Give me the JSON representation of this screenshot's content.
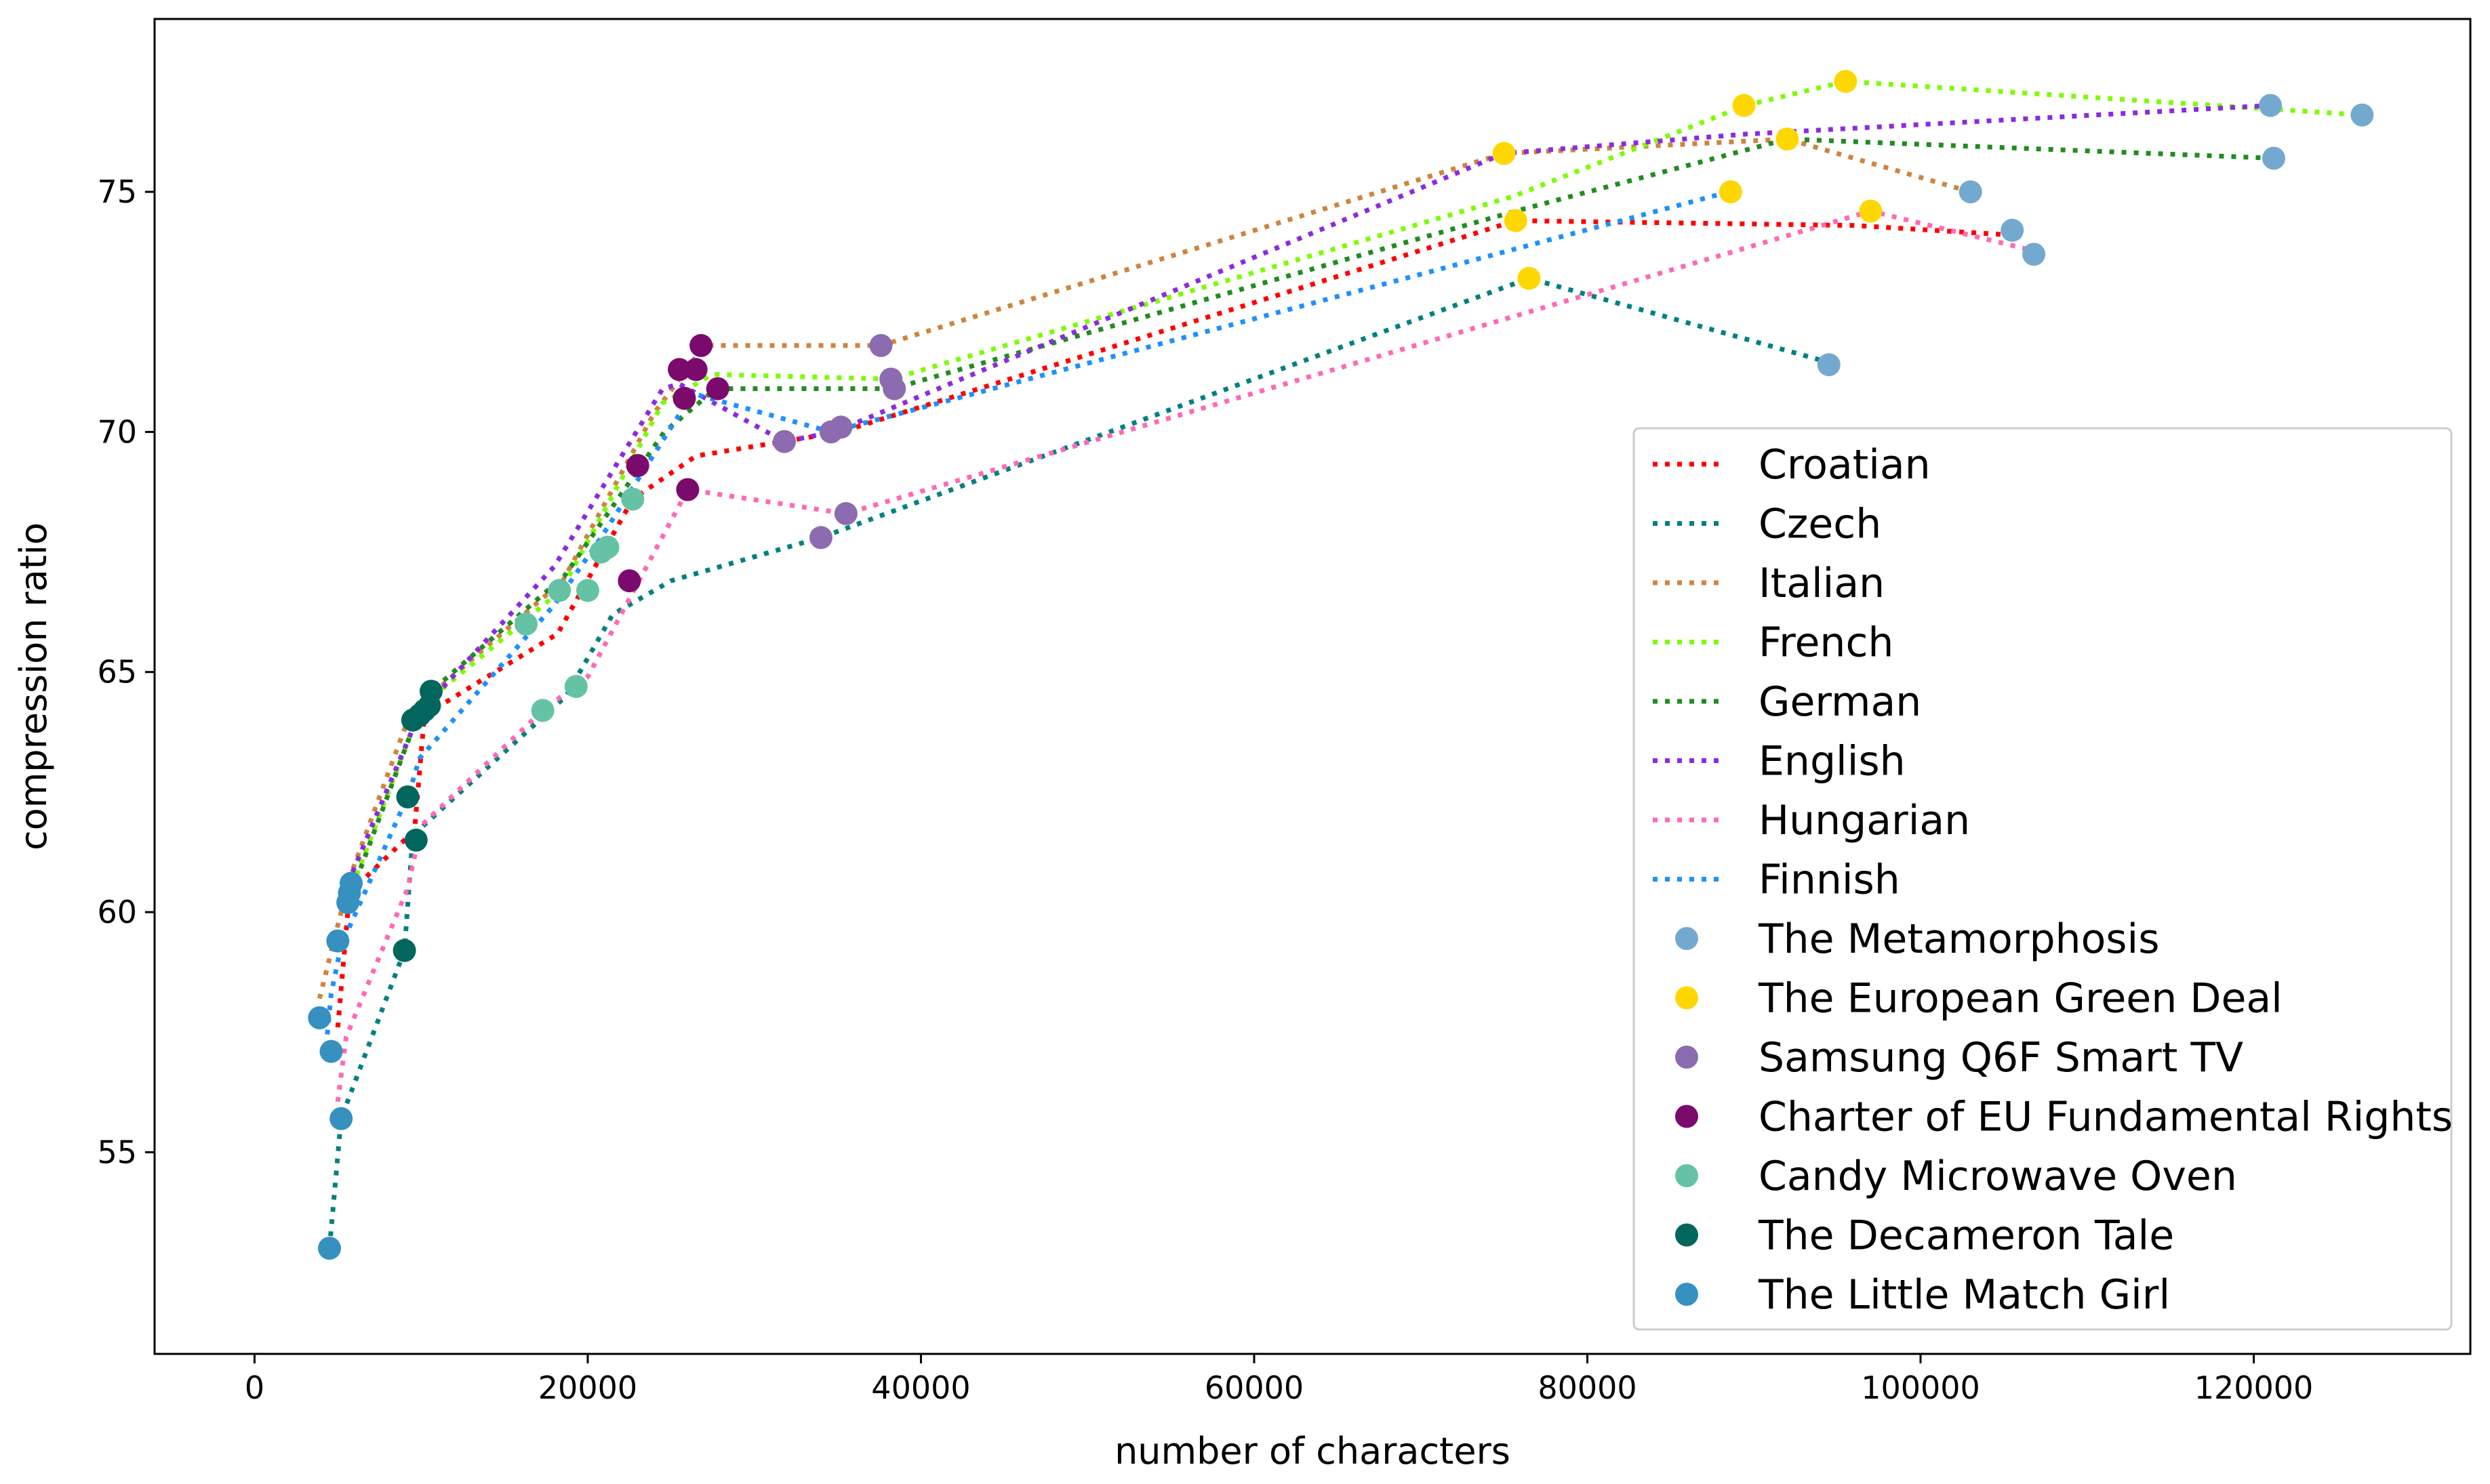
{
  "chart_data": {
    "type": "line",
    "title": "",
    "xlabel": "number of characters",
    "ylabel": "compression ratio",
    "xlim": [
      -6000,
      133000
    ],
    "ylim": [
      50.8,
      78.6
    ],
    "xticks": [
      0,
      20000,
      40000,
      60000,
      80000,
      100000,
      120000
    ],
    "xtick_labels": [
      "0",
      "20000",
      "40000",
      "60000",
      "80000",
      "100000",
      "120000"
    ],
    "yticks": [
      55,
      60,
      65,
      70,
      75
    ],
    "ytick_labels": [
      "55",
      "60",
      "65",
      "70",
      "75"
    ],
    "grid": false,
    "legend_position": "lower-right",
    "series": [
      {
        "name": "Croatian",
        "color": "#ff0000",
        "x": [
          5000,
          5700,
          9600,
          10200,
          18200,
          22700,
          26500,
          35200,
          75700,
          96000,
          105500
        ],
        "y": [
          57.6,
          60.4,
          61.7,
          64.1,
          65.8,
          68.6,
          69.5,
          70.0,
          74.4,
          74.3,
          74.1
        ]
      },
      {
        "name": "Czech",
        "color": "#008080",
        "x": [
          4500,
          5200,
          9000,
          9500,
          18700,
          21500,
          25000,
          34000,
          76500,
          95000
        ],
        "y": [
          53.0,
          55.7,
          59.2,
          61.6,
          64.5,
          66.2,
          66.9,
          67.8,
          73.2,
          71.4
        ]
      },
      {
        "name": "Italian",
        "color": "#cd853f",
        "x": [
          3900,
          5700,
          9200,
          10500,
          18500,
          24000,
          27000,
          37600,
          75000,
          92000,
          103000
        ],
        "y": [
          58.2,
          60.7,
          64.0,
          64.5,
          66.9,
          70.4,
          71.8,
          71.8,
          75.8,
          76.1,
          75.0
        ]
      },
      {
        "name": "French",
        "color": "#7cfc00",
        "x": [
          5600,
          9700,
          10400,
          18400,
          24500,
          27500,
          38200,
          75500,
          89500,
          95500,
          126500
        ],
        "y": [
          60.3,
          64.0,
          64.4,
          66.7,
          70.6,
          71.2,
          71.1,
          74.9,
          76.8,
          77.3,
          76.6
        ]
      },
      {
        "name": "German",
        "color": "#228b22",
        "x": [
          5600,
          9900,
          10600,
          18600,
          24600,
          27700,
          38300,
          75700,
          92000,
          121200
        ],
        "y": [
          60.2,
          64.2,
          64.6,
          67.0,
          70.0,
          70.9,
          70.9,
          74.6,
          76.1,
          75.7
        ]
      },
      {
        "name": "English",
        "color": "#8a2be2",
        "x": [
          5600,
          9600,
          10300,
          18000,
          24500,
          25500,
          31800,
          34800,
          75000,
          89400,
          121000
        ],
        "y": [
          60.6,
          63.9,
          64.3,
          67.2,
          70.9,
          71.0,
          69.8,
          70.0,
          75.8,
          76.2,
          76.8
        ]
      },
      {
        "name": "Hungarian",
        "color": "#ff69b4",
        "x": [
          4900,
          5500,
          9200,
          10000,
          17300,
          20000,
          26000,
          35500,
          97000,
          106500
        ],
        "y": [
          55.8,
          57.4,
          60.5,
          61.8,
          64.2,
          64.9,
          68.8,
          68.3,
          74.6,
          73.8
        ]
      },
      {
        "name": "Finnish",
        "color": "#1e90ff",
        "x": [
          4300,
          4600,
          5200,
          9300,
          9900,
          18000,
          20800,
          26300,
          34600,
          88500
        ],
        "y": [
          57.2,
          58.3,
          59.3,
          62.5,
          63.2,
          66.4,
          67.8,
          70.8,
          70.0,
          75.0
        ]
      }
    ],
    "scatter_series": [
      {
        "name": "The Metamorphosis",
        "color": "#74a9cf",
        "x": [
          94500,
          103000,
          105500,
          106800,
          121200,
          121000,
          126500
        ],
        "y": [
          71.4,
          75.0,
          74.2,
          73.7,
          75.7,
          76.8,
          76.6
        ]
      },
      {
        "name": "The European Green Deal",
        "color": "#ffd700",
        "x": [
          75000,
          75700,
          76500,
          88600,
          89400,
          92000,
          95500,
          97000
        ],
        "y": [
          75.8,
          74.4,
          73.2,
          75.0,
          76.8,
          76.1,
          77.3,
          74.6
        ]
      },
      {
        "name": "Samsung Q6F Smart TV",
        "color": "#8c6bb1",
        "x": [
          31800,
          34000,
          34600,
          35200,
          35500,
          37600,
          38200,
          38400
        ],
        "y": [
          69.8,
          67.8,
          70.0,
          70.1,
          68.3,
          71.8,
          71.1,
          70.9
        ]
      },
      {
        "name": "Charter of EU Fundamental Rights",
        "color": "#7b0a6d",
        "x": [
          22500,
          23000,
          25500,
          25800,
          26000,
          26500,
          26800,
          27800
        ],
        "y": [
          66.9,
          69.3,
          71.3,
          70.7,
          68.8,
          71.3,
          71.8,
          70.9
        ]
      },
      {
        "name": "Candy Microwave Oven",
        "color": "#66c2a4",
        "x": [
          16300,
          17300,
          18300,
          19300,
          20000,
          20800,
          21200,
          22700
        ],
        "y": [
          66.0,
          64.2,
          66.7,
          64.7,
          66.7,
          67.5,
          67.6,
          68.6
        ]
      },
      {
        "name": "The Decameron Tale",
        "color": "#01665e",
        "x": [
          9000,
          9200,
          9500,
          9700,
          9900,
          10200,
          10500,
          10600
        ],
        "y": [
          59.2,
          62.4,
          64.0,
          61.5,
          64.1,
          64.2,
          64.3,
          64.6
        ]
      },
      {
        "name": "The Little Match Girl",
        "color": "#3690c0",
        "x": [
          3900,
          4500,
          4600,
          5000,
          5200,
          5600,
          5700,
          5800
        ],
        "y": [
          57.8,
          53.0,
          57.1,
          59.4,
          55.7,
          60.2,
          60.4,
          60.6
        ]
      }
    ]
  }
}
